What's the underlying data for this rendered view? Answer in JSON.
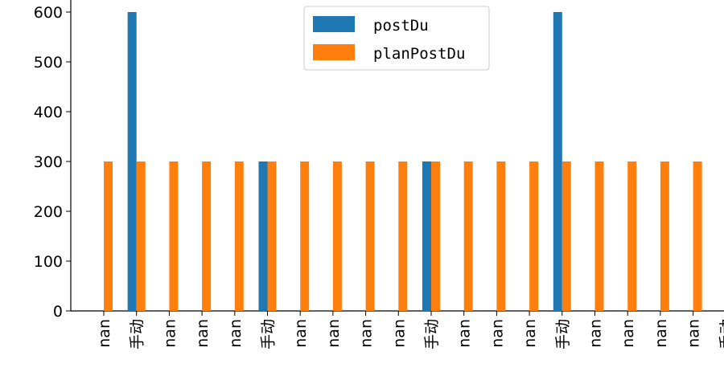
{
  "chart_data": {
    "type": "bar",
    "categories": [
      "nan",
      "手动",
      "nan",
      "nan",
      "nan",
      "手动",
      "nan",
      "nan",
      "nan",
      "nan",
      "手动",
      "nan",
      "nan",
      "nan",
      "手动",
      "nan",
      "nan",
      "nan",
      "nan",
      "手动"
    ],
    "series": [
      {
        "name": "postDu",
        "color": "#1f77b4",
        "values": [
          null,
          600,
          null,
          null,
          null,
          300,
          null,
          null,
          null,
          null,
          300,
          null,
          null,
          null,
          600,
          null,
          null,
          null,
          null,
          null
        ]
      },
      {
        "name": "planPostDu",
        "color": "#ff7f0e",
        "values": [
          300,
          300,
          300,
          300,
          300,
          300,
          300,
          300,
          300,
          300,
          300,
          300,
          300,
          300,
          300,
          300,
          300,
          300,
          300,
          null
        ]
      }
    ],
    "y_ticks": [
      0,
      100,
      200,
      300,
      400,
      500,
      600
    ],
    "ylim": [
      0,
      620
    ],
    "legend": "top-center",
    "grid": false
  }
}
